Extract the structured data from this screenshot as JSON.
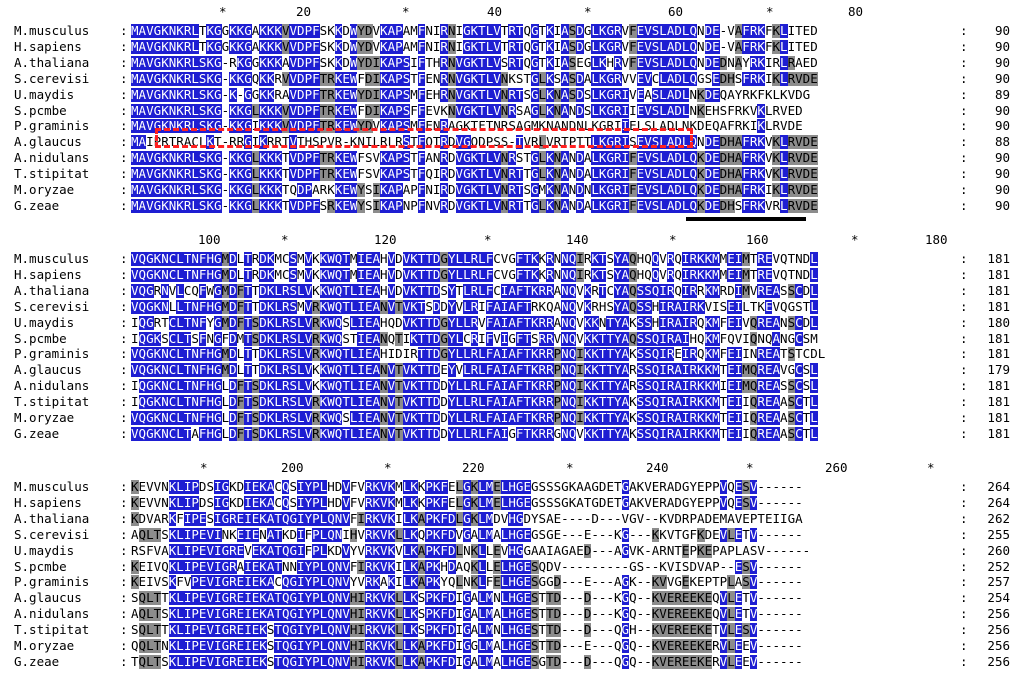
{
  "blocks": [
    {
      "ruler": [
        {
          "text": "*"
        },
        {
          "text": "20"
        },
        {
          "text": "*"
        },
        {
          "text": "40"
        },
        {
          "text": "*"
        },
        {
          "text": "60"
        },
        {
          "text": "*"
        },
        {
          "text": "80"
        }
      ],
      "rows": [
        {
          "name": "M.musculus",
          "seq": "MAVGKNKRLTKGGKKGAKKKVVDPFSKKDWYDVKAPAMFNIRNIGKTLVTRTQGTKIASDGLKGRVFEVSLADLQNDE-VAFRKFKLITED",
          "end": "90"
        },
        {
          "name": "H.sapiens",
          "seq": "MAVGKNKRLTKGGKKGAKKKVVDPFSKKDWYDVKAPAMFNIRNIGKTLVTRTQGTKIASDGLKGRVFEVSLADLQNDE-VAFRKFKLITED",
          "end": "90"
        },
        {
          "name": "A.thaliana",
          "seq": "MAVGKNKRLSKG-RKGGKKKAVDPFSKKDWYDIKAPSIFTHRNVGKTLVSRTQGTKIASEGLKHRVFEVSLADLQNDEDNAYRKIRLRAED",
          "end": "90"
        },
        {
          "name": "S.cerevisi",
          "seq": "MAVGKNKRLSKG-KKGQKKRVVDPFTRKEWFDIKAPSTFENRNVGKTLVNKSTGLKSASDALKGRVVEVCLADLQGSEDHSFRKIKLRVDE",
          "end": "90"
        },
        {
          "name": "U.maydis",
          "seq": "MAVGKNKRLSKG-K-GGKKRAVDPFTRKEWYDIKAPSMFEHRNVGKTLVNRTSGLKNASDSLKGRIVEASLADLNKDEQAYRKFKLKVDG",
          "end": "89"
        },
        {
          "name": "S.pcmbe",
          "seq": "MAVGKNKRLSKG-KKGLKKKVVDPFTRKEWFDIKAPSFFEVKNVGKTLVNRSAGLKNANDSLKGRIIEVSLADLNKEHSFRKVKLRVED",
          "end": "90"
        },
        {
          "name": "P.graminis",
          "seq": "MAVGKNKRLSKG-KKGIKKKVVDPFTRKEWYDVKAPSMFENRAGKTFTNRSAGMKNANDNLKGRIIELSLADLNKDEQAFRKIKLRVDE",
          "end": "90"
        },
        {
          "name": "A.glaucus",
          "seq": "MAIPRTRACLKT-RRGIKRRTVTHSPVR-KNILRLRSTFQTRDVGQDPSS-TVRLVRTPTTLKGRISEVSLADLQNDEDHAFRKVKLRVDE",
          "end": "88"
        },
        {
          "name": "A.nidulans",
          "seq": "MAVGKNKRLSKG-KKGLKKKTVDPFTRKEWFSVKAPSTFANRDVGKTLVNRSTGLKNANDALKGRIFEVSLADLQKDEDHAFRKVKLRVDE",
          "end": "90"
        },
        {
          "name": "T.stipitat",
          "seq": "MAVGKNKRLSKG-KKGLKKKTVDPFTRKEWFSVKAPSTFQIRDVGKTLVNRTTGLKNANDALKGRIFEVSLADLQKDEDHAFRKVKLRVDE",
          "end": "90"
        },
        {
          "name": "M.oryzae",
          "seq": "MAVGKNKRLSKG-KKGLKKKTQDPARKKEWYSIKAPAPFNIRDVGKTLVNRTSGMKNANDNLKGRIFEVSLADLQKDEDHAFRKIKLRVDE",
          "end": "90"
        },
        {
          "name": "G.zeae",
          "seq": "MAVGKNKRLSKG-KKGLKKKTVDPFSRKEWYSIKAPNPFNVRDVGKTLVNRTTGLKNANDALKGRIFEVSLADLQKDEDHSFRKVRLRVDE",
          "end": "90"
        }
      ]
    },
    {
      "ruler": [
        {
          "text": "100"
        },
        {
          "text": "*"
        },
        {
          "text": "120"
        },
        {
          "text": "*"
        },
        {
          "text": "140"
        },
        {
          "text": "*"
        },
        {
          "text": "160"
        },
        {
          "text": "*"
        },
        {
          "text": "180"
        }
      ],
      "rows": [
        {
          "name": "M.musculus",
          "seq": "VQGKNCLTNFHGMDLTRDKMCSMVKKWQTMIEAHVDVKTTDGYLLRLFCVGFTKKRNNQIRKTSYAQHQQVRQIRKKMMEIMTREVQTNDL",
          "end": "181"
        },
        {
          "name": "H.sapiens",
          "seq": "VQGKNCLTNFHGMDLTRDKMCSMVKKWQTMIEAHVDVKTTDGYLLRLFCVGFTKKRNNQIRKTSYAQHQQVRQIRKKMMEIMTREVQTNDL",
          "end": "181"
        },
        {
          "name": "A.thaliana",
          "seq": "VQGRNVLCQFWGMDFTTDKLRSLVKKWQTLIEAHVDVKTTDSYTLRLFCIAFTKRRANQVKRTCYAQSSQIRQIRRKMRDIMVREASSCDL",
          "end": "181"
        },
        {
          "name": "S.cerevisi",
          "seq": "VQGKNLLTNFHGMDFTTDKLRSMVRKWQTLIEANVTVKTSDDYVLRIFAIAFTRKQANQVKRHSYAQSSHIRAIRKVISEILTKEVQGSTL",
          "end": "181"
        },
        {
          "name": "U.maydis",
          "seq": "IQGRTCLTNFYGMDFTSDKLRSLVRKWQSLIEAHQDVKTTDGYLLRVFAIAFTKRRANQVKKNTYAKSSHIRAIRQKMFEIVQREANSCDL",
          "end": "180"
        },
        {
          "name": "S.pcmbe",
          "seq": "IQGKSCLTSFNGFDMTSDKLRSLVRKWQSTIEANQTIKTTDGYLCRIFVIGFTSRRVNQVKKTTYAQSSQIRAIHQKMFQVIQNQANGCSM",
          "end": "181"
        },
        {
          "name": "P.graminis",
          "seq": "VQGKNCLTNFHGMDLTTDKLRSLVRKWQTLIEAHIDIRTTDGYLLRLFAIAFTKRRPNQIKKTTYAKSSQIREIRQKMFEIINREATSTCDL",
          "end": "181"
        },
        {
          "name": "A.glaucus",
          "seq": "VQGKNCLTNFHGMDLTTDKLRSLVKKWQTLIEANVTVKTTDEYVLRLFAIAFTKRRPNQIKKTTYARSSQIRAIRKKMTEIMQREAVGCSL",
          "end": "179"
        },
        {
          "name": "A.nidulans",
          "seq": "IQGKNCLTNFHGLDFTSDKLRSLVKKWQTLIEANVTVKTTDDYLLRLFAIAFTKRRPNQIKKTTYARSSQIRAIRKKMIEIMQREASSCSL",
          "end": "181"
        },
        {
          "name": "T.stipitat",
          "seq": "IQGKNCLTNFHGLDFTSDKLRSLVRKWQTLIEANVTVKTTDDYLLRLFAIAFTKRRPNQIKKTTYAKSSQIRAIRKKMTEIIQREAASCTL",
          "end": "181"
        },
        {
          "name": "M.oryzae",
          "seq": "VQGKNCLTNFHGLDFTSDKLRSLVRKWQSLIEANVTVKTTDDYLLRLFAIAFTKRRPNQIKKTTYAKSSQIRAIRKKMTEIIQREAASCTL",
          "end": "181"
        },
        {
          "name": "G.zeae",
          "seq": "VQGKNCLTAFHGLDFTSDKLRSLVRKWQTLIEANVTVKTTDDYLLRLFAIGFTKRRGNQVKKTTYAKSSQIRAIRKKMTEIIQREAASCTL",
          "end": "181"
        }
      ]
    },
    {
      "ruler": [
        {
          "text": "*"
        },
        {
          "text": "200"
        },
        {
          "text": "*"
        },
        {
          "text": "220"
        },
        {
          "text": "*"
        },
        {
          "text": "240"
        },
        {
          "text": "*"
        },
        {
          "text": "260"
        },
        {
          "text": "*"
        }
      ],
      "rows": [
        {
          "name": "M.musculus",
          "seq": "KEVVNKLIPDSIGKDIEKACQSIYPLHDVFVRKVKMLKKPKFELGKLMELHGEGSSSGKAAGDETGAKVERADGYEPPVQESV------",
          "end": "264"
        },
        {
          "name": "H.sapiens",
          "seq": "KEVVNKLIPDSIGKDIEKACQSIYPLHDVFVRKVKMLKKPKFELGKLMELHGEGSSSGKATGDETGAKVERADGYEPPVQESV------",
          "end": "264"
        },
        {
          "name": "A.thaliana",
          "seq": "KDVARKFIPESIGREIEKATQGIYPLQNVFIRKVKILKAPKFDLGKLMDVHGDYSAE----D---VGV--KVDRPADEMAVEPTEIIGA",
          "end": "262"
        },
        {
          "name": "S.cerevisi",
          "seq": "AQLTSKLIPEVINKEIENATKDIFPLQNIHVRKVKLLKQPKFDVGALMALHGEGSGE---E---KG---KKVTGFKDEVLETV------",
          "end": "255"
        },
        {
          "name": "U.maydis",
          "seq": "RSFVAKLIPEVIGREVEKATQGIFPLKDVYVRKVKVLKAPKFDLNKLLEVHGGAAIAGAED---AGVK-ARNTEPKEPAPLASV------",
          "end": "260"
        },
        {
          "name": "S.pcmbe",
          "seq": "KEIVQKLIPEVIGRAIEKATNNIYPLQNVFIRKVKILKAPKHDAQKLLELHGESQDV---------GS--KVISDVAP--ESV------",
          "end": "252"
        },
        {
          "name": "P.graminis",
          "seq": "KEIVSKFVPEVIGREIEKACQGIYPLQNVYVRKAKILKAPKYQLNKLFELHGESGGD---E---AGK--KVVGEKEPTPLASV------",
          "end": "257"
        },
        {
          "name": "A.glaucus",
          "seq": "SQLTTKLIPEVIGREIEKATQGIYPLQNVHIRKVKLLKSPKFDIGALMNLHGESTTD---D---KGQ--KVEREEKEQVLETV------",
          "end": "254"
        },
        {
          "name": "A.nidulans",
          "seq": "AQLTSKLIPEVIGREIEKATQGIYPLQNVHIRKVKLLKSPKFDIGALMALHGESTTD---D---KGQ--KVEREEKEQVLETV------",
          "end": "256"
        },
        {
          "name": "T.stipitat",
          "seq": "SQLTTKLIPEVIGREIEKSTQGIYPLQNVHIRKVKLLKSPKFDIGALMNLHGESTTD---D---QGH--KVEREEKETVLESV------",
          "end": "256"
        },
        {
          "name": "M.oryzae",
          "seq": "QQLTNKLIPEVIGREIEKSTQGIYPLQNVHIRKVKLLKAPKFDIGGLMALHGESTTD---E---QGQ--KVEREEKERVLEEV------",
          "end": "256"
        },
        {
          "name": "G.zeae",
          "seq": "TQLTSKLIPEVIGREIEKSTQGIYPLQNVHIRKVKLLKAPKFDIGALMALHGESGTD---D---QGQ--KVEREEKERVLEEV------",
          "end": "256"
        }
      ]
    }
  ],
  "colors": {
    "conserved": "#1e1ed2",
    "similar": "#8c8c8c",
    "annotation_box": "#ff2020",
    "underline": "#000000"
  }
}
